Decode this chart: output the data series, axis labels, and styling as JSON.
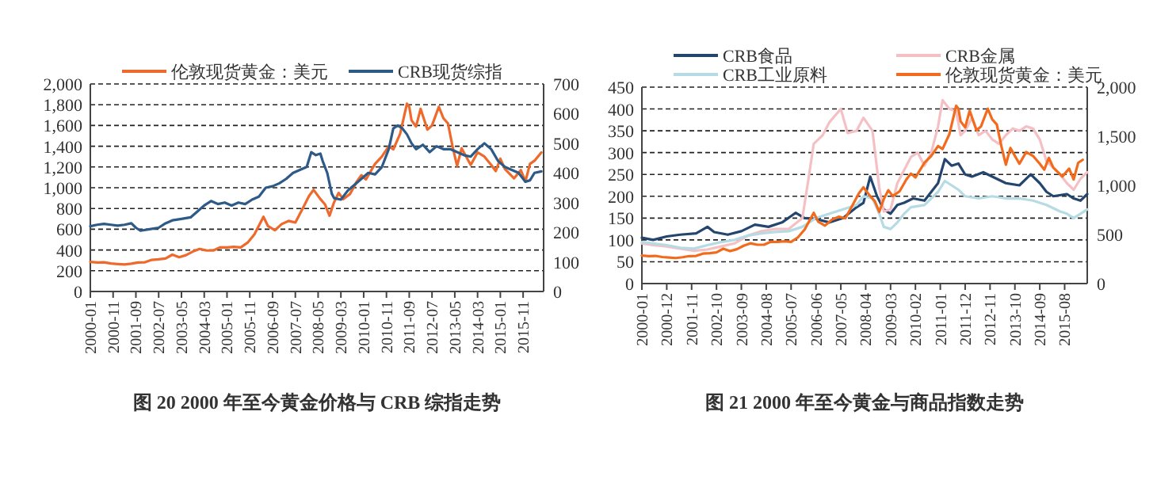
{
  "chart_data": [
    {
      "type": "line",
      "title": "图 20    2000 年至今黄金价格与 CRB 综指走势",
      "legend": "top",
      "grid": "y",
      "xlim": [
        "2000-01",
        "2016-08"
      ],
      "xticks": [
        "2000-01",
        "2000-11",
        "2001-09",
        "2002-07",
        "2003-05",
        "2004-03",
        "2005-01",
        "2005-11",
        "2006-09",
        "2007-07",
        "2008-05",
        "2009-03",
        "2010-01",
        "2010-11",
        "2011-09",
        "2012-07",
        "2013-05",
        "2014-03",
        "2015-01",
        "2015-11"
      ],
      "ylim": [
        0,
        2000
      ],
      "yticks": [
        0,
        200,
        400,
        600,
        800,
        {
          "value": 1000,
          "label": "1,000"
        },
        {
          "value": 1200,
          "label": "1,200"
        },
        {
          "value": 1400,
          "label": "1,400"
        },
        {
          "value": 1600,
          "label": "1,600"
        },
        {
          "value": 1800,
          "label": "1,800"
        },
        {
          "value": 2000,
          "label": "2,000"
        }
      ],
      "y2lim": [
        0,
        700
      ],
      "y2ticks": [
        0,
        100,
        200,
        300,
        400,
        500,
        600,
        700
      ],
      "series": [
        {
          "name": "伦敦现货黄金：美元",
          "color": "#ed6a2c",
          "x": [
            "2000-01",
            "2000-04",
            "2000-07",
            "2000-10",
            "2001-01",
            "2001-04",
            "2001-07",
            "2001-10",
            "2002-01",
            "2002-04",
            "2002-07",
            "2002-10",
            "2003-01",
            "2003-04",
            "2003-07",
            "2003-10",
            "2004-01",
            "2004-04",
            "2004-07",
            "2004-10",
            "2005-01",
            "2005-04",
            "2005-07",
            "2005-10",
            "2006-01",
            "2006-05",
            "2006-07",
            "2006-10",
            "2007-01",
            "2007-04",
            "2007-07",
            "2007-10",
            "2008-01",
            "2008-03",
            "2008-06",
            "2008-08",
            "2008-10",
            "2008-12",
            "2009-02",
            "2009-04",
            "2009-07",
            "2009-10",
            "2009-12",
            "2010-02",
            "2010-06",
            "2010-09",
            "2010-12",
            "2011-02",
            "2011-05",
            "2011-08",
            "2011-09",
            "2011-10",
            "2011-12",
            "2012-02",
            "2012-05",
            "2012-07",
            "2012-10",
            "2012-12",
            "2013-02",
            "2013-04",
            "2013-06",
            "2013-08",
            "2013-12",
            "2014-03",
            "2014-06",
            "2014-09",
            "2014-11",
            "2015-01",
            "2015-03",
            "2015-07",
            "2015-10",
            "2015-12",
            "2016-02",
            "2016-04",
            "2016-07"
          ],
          "values": [
            285,
            280,
            282,
            270,
            265,
            260,
            268,
            280,
            282,
            305,
            310,
            318,
            355,
            330,
            350,
            385,
            410,
            395,
            395,
            425,
            425,
            430,
            425,
            470,
            550,
            720,
            630,
            590,
            650,
            680,
            665,
            790,
            920,
            980,
            890,
            840,
            730,
            860,
            950,
            890,
            940,
            1060,
            1120,
            1080,
            1230,
            1300,
            1400,
            1370,
            1520,
            1810,
            1780,
            1650,
            1590,
            1760,
            1560,
            1600,
            1780,
            1670,
            1620,
            1400,
            1210,
            1380,
            1220,
            1340,
            1300,
            1220,
            1160,
            1280,
            1180,
            1090,
            1170,
            1060,
            1230,
            1260,
            1340
          ]
        },
        {
          "name": "CRB现货综指",
          "color": "#2e5a88",
          "axis": "y2",
          "x": [
            "2000-01",
            "2000-04",
            "2000-07",
            "2000-10",
            "2001-01",
            "2001-04",
            "2001-07",
            "2001-09",
            "2001-11",
            "2002-03",
            "2002-07",
            "2002-10",
            "2003-01",
            "2003-05",
            "2003-09",
            "2003-12",
            "2004-03",
            "2004-06",
            "2004-09",
            "2004-12",
            "2005-03",
            "2005-06",
            "2005-09",
            "2005-12",
            "2006-03",
            "2006-06",
            "2006-09",
            "2006-12",
            "2007-03",
            "2007-06",
            "2007-09",
            "2007-12",
            "2008-02",
            "2008-04",
            "2008-06",
            "2008-07",
            "2008-09",
            "2008-11",
            "2008-12",
            "2009-03",
            "2009-06",
            "2009-09",
            "2009-12",
            "2010-03",
            "2010-06",
            "2010-09",
            "2010-12",
            "2011-02",
            "2011-04",
            "2011-06",
            "2011-08",
            "2011-10",
            "2011-12",
            "2012-03",
            "2012-06",
            "2012-09",
            "2012-12",
            "2013-03",
            "2013-06",
            "2013-09",
            "2013-12",
            "2014-03",
            "2014-06",
            "2014-09",
            "2014-12",
            "2015-03",
            "2015-06",
            "2015-09",
            "2015-12",
            "2016-02",
            "2016-04",
            "2016-07"
          ],
          "values": [
            220,
            225,
            228,
            225,
            222,
            225,
            230,
            215,
            205,
            210,
            215,
            230,
            240,
            245,
            250,
            270,
            290,
            305,
            295,
            300,
            290,
            300,
            295,
            310,
            320,
            350,
            355,
            365,
            380,
            400,
            410,
            420,
            470,
            460,
            465,
            440,
            400,
            330,
            315,
            310,
            340,
            360,
            380,
            400,
            395,
            420,
            480,
            550,
            560,
            550,
            530,
            500,
            480,
            495,
            470,
            490,
            480,
            480,
            470,
            460,
            455,
            480,
            500,
            480,
            440,
            420,
            410,
            400,
            370,
            375,
            400,
            405
          ]
        }
      ]
    },
    {
      "type": "line",
      "title": "图 21    2000 年至今黄金与商品指数走势",
      "legend": "top",
      "grid": "y",
      "xlim": [
        "2000-01",
        "2016-06"
      ],
      "xticks": [
        "2000-01",
        "2000-12",
        "2001-11",
        "2002-10",
        "2003-09",
        "2004-08",
        "2005-07",
        "2006-06",
        "2007-05",
        "2008-04",
        "2009-03",
        "2010-02",
        "2011-01",
        "2011-12",
        "2012-11",
        "2013-10",
        "2014-09",
        "2015-08"
      ],
      "ylim": [
        0,
        450
      ],
      "yticks": [
        0,
        50,
        100,
        150,
        200,
        250,
        300,
        350,
        400,
        450
      ],
      "y2lim": [
        0,
        2000
      ],
      "y2ticks": [
        0,
        500,
        {
          "value": 1000,
          "label": "1,000"
        },
        {
          "value": 1500,
          "label": "1,500"
        },
        {
          "value": 2000,
          "label": "2,000"
        }
      ],
      "series": [
        {
          "name": "CRB食品",
          "color": "#24456e",
          "x": [
            "2000-01",
            "2000-06",
            "2000-12",
            "2001-06",
            "2002-01",
            "2002-06",
            "2002-09",
            "2003-03",
            "2003-09",
            "2004-03",
            "2004-09",
            "2005-03",
            "2005-09",
            "2006-01",
            "2006-06",
            "2006-12",
            "2007-06",
            "2007-12",
            "2008-03",
            "2008-06",
            "2008-09",
            "2008-12",
            "2009-03",
            "2009-06",
            "2009-09",
            "2010-01",
            "2010-06",
            "2010-12",
            "2011-03",
            "2011-06",
            "2011-09",
            "2011-12",
            "2012-03",
            "2012-08",
            "2012-12",
            "2013-06",
            "2013-12",
            "2014-05",
            "2014-09",
            "2014-12",
            "2015-03",
            "2015-09",
            "2015-12",
            "2016-03",
            "2016-06"
          ],
          "values": [
            105,
            100,
            108,
            112,
            115,
            130,
            118,
            112,
            120,
            135,
            130,
            140,
            162,
            150,
            148,
            140,
            150,
            175,
            185,
            245,
            200,
            170,
            160,
            180,
            185,
            195,
            190,
            230,
            285,
            270,
            275,
            250,
            245,
            255,
            245,
            230,
            225,
            250,
            230,
            210,
            200,
            205,
            195,
            190,
            205
          ]
        },
        {
          "name": "CRB金属",
          "color": "#f4c0c4",
          "x": [
            "2000-01",
            "2000-06",
            "2000-12",
            "2001-06",
            "2001-12",
            "2002-06",
            "2002-12",
            "2003-06",
            "2003-12",
            "2004-06",
            "2004-12",
            "2005-06",
            "2005-12",
            "2006-03",
            "2006-05",
            "2006-09",
            "2006-12",
            "2007-05",
            "2007-08",
            "2007-12",
            "2008-03",
            "2008-07",
            "2008-10",
            "2008-12",
            "2009-03",
            "2009-06",
            "2009-09",
            "2009-12",
            "2010-03",
            "2010-06",
            "2010-09",
            "2010-12",
            "2011-02",
            "2011-05",
            "2011-08",
            "2011-10",
            "2011-12",
            "2012-03",
            "2012-06",
            "2012-09",
            "2012-12",
            "2013-03",
            "2013-06",
            "2013-09",
            "2013-12",
            "2014-03",
            "2014-06",
            "2014-09",
            "2014-12",
            "2015-03",
            "2015-06",
            "2015-09",
            "2015-12",
            "2016-03",
            "2016-06"
          ],
          "values": [
            92,
            88,
            85,
            80,
            75,
            78,
            85,
            92,
            110,
            120,
            125,
            125,
            150,
            250,
            320,
            340,
            370,
            400,
            345,
            350,
            380,
            350,
            220,
            165,
            170,
            230,
            260,
            290,
            300,
            270,
            300,
            360,
            420,
            400,
            395,
            340,
            350,
            380,
            340,
            350,
            330,
            320,
            340,
            355,
            350,
            360,
            355,
            330,
            280,
            265,
            250,
            230,
            215,
            240,
            255
          ]
        },
        {
          "name": "CRB工业原料",
          "color": "#b6dbe4",
          "x": [
            "2000-01",
            "2000-06",
            "2000-12",
            "2001-06",
            "2001-12",
            "2002-06",
            "2002-12",
            "2003-06",
            "2003-12",
            "2004-06",
            "2004-12",
            "2005-06",
            "2005-12",
            "2006-06",
            "2006-12",
            "2007-06",
            "2007-12",
            "2008-03",
            "2008-07",
            "2008-10",
            "2008-12",
            "2009-03",
            "2009-06",
            "2009-09",
            "2009-12",
            "2010-06",
            "2010-12",
            "2011-03",
            "2011-06",
            "2011-09",
            "2011-12",
            "2012-06",
            "2012-12",
            "2013-06",
            "2013-12",
            "2014-06",
            "2014-12",
            "2015-06",
            "2015-09",
            "2015-12",
            "2016-03",
            "2016-06"
          ],
          "values": [
            95,
            92,
            88,
            82,
            80,
            88,
            95,
            100,
            110,
            115,
            118,
            120,
            130,
            150,
            160,
            170,
            180,
            200,
            195,
            160,
            130,
            125,
            140,
            160,
            175,
            180,
            210,
            235,
            225,
            215,
            200,
            195,
            200,
            195,
            195,
            190,
            180,
            165,
            160,
            150,
            160,
            170
          ]
        },
        {
          "name": "伦敦现货黄金：美元",
          "color": "#f26b1d",
          "axis": "y2",
          "x": [
            "2000-01",
            "2000-04",
            "2000-07",
            "2000-10",
            "2001-01",
            "2001-04",
            "2001-07",
            "2001-10",
            "2002-01",
            "2002-04",
            "2002-07",
            "2002-10",
            "2003-01",
            "2003-04",
            "2003-07",
            "2003-10",
            "2004-01",
            "2004-04",
            "2004-07",
            "2004-10",
            "2005-01",
            "2005-04",
            "2005-07",
            "2005-10",
            "2006-01",
            "2006-05",
            "2006-07",
            "2006-10",
            "2007-01",
            "2007-04",
            "2007-07",
            "2007-10",
            "2008-01",
            "2008-03",
            "2008-06",
            "2008-08",
            "2008-10",
            "2008-12",
            "2009-02",
            "2009-04",
            "2009-07",
            "2009-10",
            "2009-12",
            "2010-02",
            "2010-06",
            "2010-09",
            "2010-12",
            "2011-02",
            "2011-05",
            "2011-08",
            "2011-09",
            "2011-10",
            "2011-12",
            "2012-02",
            "2012-05",
            "2012-07",
            "2012-10",
            "2012-12",
            "2013-02",
            "2013-04",
            "2013-06",
            "2013-08",
            "2013-12",
            "2014-03",
            "2014-06",
            "2014-09",
            "2014-11",
            "2015-01",
            "2015-03",
            "2015-07",
            "2015-10",
            "2015-12",
            "2016-02",
            "2016-04"
          ],
          "values": [
            285,
            280,
            282,
            270,
            265,
            260,
            268,
            280,
            282,
            305,
            310,
            318,
            355,
            330,
            350,
            385,
            410,
            395,
            395,
            425,
            425,
            430,
            425,
            470,
            550,
            720,
            630,
            590,
            650,
            680,
            665,
            790,
            920,
            980,
            890,
            840,
            730,
            860,
            950,
            890,
            940,
            1060,
            1120,
            1080,
            1230,
            1300,
            1400,
            1370,
            1520,
            1810,
            1780,
            1650,
            1590,
            1760,
            1560,
            1600,
            1780,
            1670,
            1620,
            1400,
            1210,
            1380,
            1220,
            1340,
            1300,
            1220,
            1160,
            1280,
            1180,
            1090,
            1170,
            1060,
            1230,
            1260
          ]
        }
      ]
    }
  ]
}
